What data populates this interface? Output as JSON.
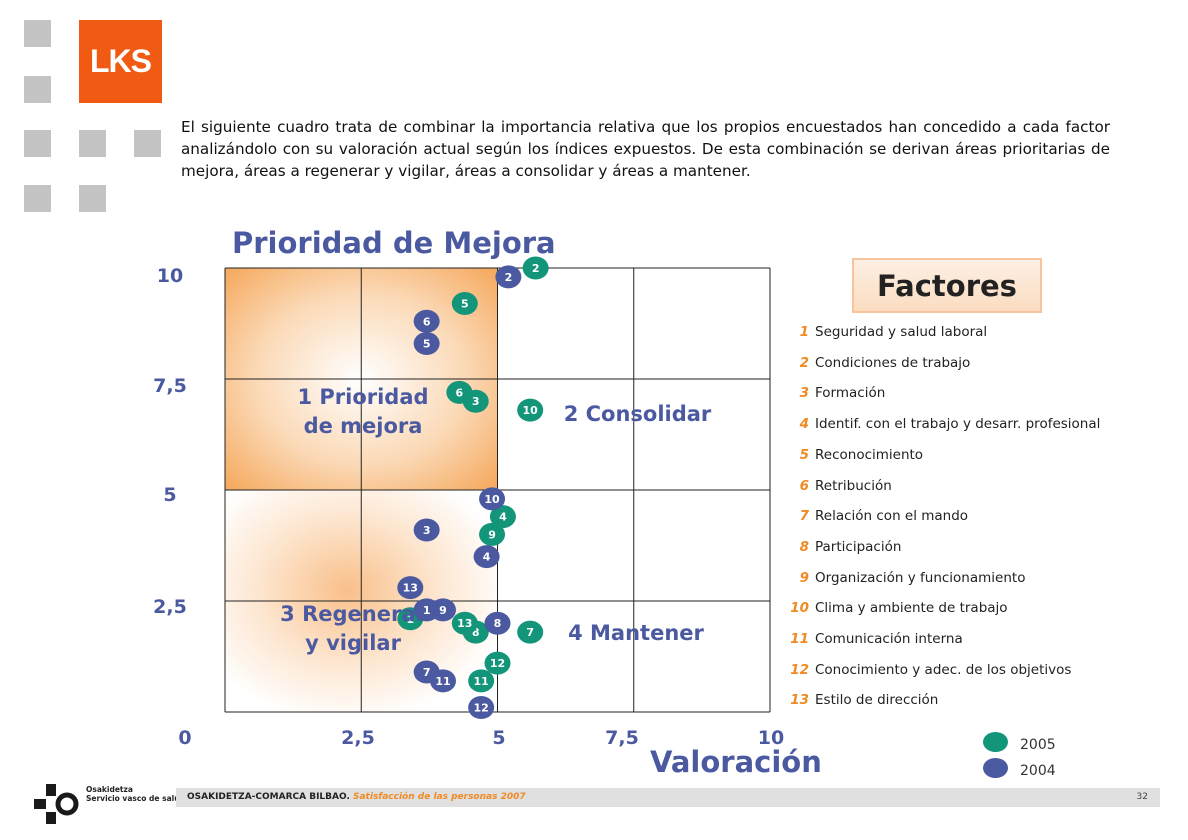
{
  "logo": {
    "text": "LKS",
    "color": "#f05a12"
  },
  "intro_text": "El siguiente cuadro trata de combinar la importancia relativa que los propios encuestados han concedido a cada factor analizándolo con su valoración actual según los índices expuestos. De esta combinación se derivan áreas prioritarias de mejora, áreas a regenerar y vigilar, áreas a consolidar y áreas a mantener.",
  "chart_data": {
    "type": "scatter",
    "title": "Prioridad de Mejora",
    "xlabel": "Valoración",
    "ylabel": "",
    "xlim": [
      0,
      10
    ],
    "ylim": [
      0,
      10
    ],
    "x_ticks": [
      "0",
      "2,5",
      "5",
      "7,5",
      "10"
    ],
    "y_ticks": [
      "10",
      "7,5",
      "5",
      "2,5"
    ],
    "grid": true,
    "quadrants": [
      {
        "label_line1": "1 Prioridad",
        "label_line2": "de mejora"
      },
      {
        "label_line1": "2 Consolidar",
        "label_line2": ""
      },
      {
        "label_line1": "3 Regenerar",
        "label_line2": "y vigilar"
      },
      {
        "label_line1": "4 Mantener",
        "label_line2": ""
      }
    ],
    "series": [
      {
        "name": "2005",
        "color": "#13957a",
        "points": [
          {
            "label": "1",
            "x": 3.4,
            "y": 2.1
          },
          {
            "label": "2",
            "x": 5.7,
            "y": 10.0
          },
          {
            "label": "3",
            "x": 4.6,
            "y": 7.0
          },
          {
            "label": "4",
            "x": 5.1,
            "y": 4.4
          },
          {
            "label": "5",
            "x": 4.4,
            "y": 9.2
          },
          {
            "label": "6",
            "x": 4.3,
            "y": 7.2
          },
          {
            "label": "7",
            "x": 5.6,
            "y": 1.8
          },
          {
            "label": "8",
            "x": 4.6,
            "y": 1.8
          },
          {
            "label": "9",
            "x": 4.9,
            "y": 4.0
          },
          {
            "label": "10",
            "x": 5.6,
            "y": 6.8
          },
          {
            "label": "11",
            "x": 4.7,
            "y": 0.7
          },
          {
            "label": "12",
            "x": 5.0,
            "y": 1.1
          },
          {
            "label": "13",
            "x": 4.4,
            "y": 2.0
          }
        ]
      },
      {
        "name": "2004",
        "color": "#4b5aa0",
        "points": [
          {
            "label": "1",
            "x": 3.7,
            "y": 2.3
          },
          {
            "label": "2",
            "x": 5.2,
            "y": 9.8
          },
          {
            "label": "3",
            "x": 3.7,
            "y": 4.1
          },
          {
            "label": "4",
            "x": 4.8,
            "y": 3.5
          },
          {
            "label": "5",
            "x": 3.7,
            "y": 8.3
          },
          {
            "label": "6",
            "x": 3.7,
            "y": 8.8
          },
          {
            "label": "7",
            "x": 3.7,
            "y": 0.9
          },
          {
            "label": "8",
            "x": 5.0,
            "y": 2.0
          },
          {
            "label": "9",
            "x": 4.0,
            "y": 2.3
          },
          {
            "label": "10",
            "x": 4.9,
            "y": 4.8
          },
          {
            "label": "11",
            "x": 4.0,
            "y": 0.7
          },
          {
            "label": "12",
            "x": 4.7,
            "y": 0.1
          },
          {
            "label": "13",
            "x": 3.4,
            "y": 2.8
          }
        ]
      }
    ]
  },
  "factors": {
    "title": "Factores",
    "items": [
      {
        "num": "1",
        "label": "Seguridad y salud laboral"
      },
      {
        "num": "2",
        "label": "Condiciones de trabajo"
      },
      {
        "num": "3",
        "label": "Formación"
      },
      {
        "num": "4",
        "label": "Identif. con el trabajo y desarr. profesional"
      },
      {
        "num": "5",
        "label": "Reconocimiento"
      },
      {
        "num": "6",
        "label": "Retribución"
      },
      {
        "num": "7",
        "label": "Relación con el mando"
      },
      {
        "num": "8",
        "label": "Participación"
      },
      {
        "num": "9",
        "label": "Organización y funcionamiento"
      },
      {
        "num": "10",
        "label": "Clima y ambiente de trabajo"
      },
      {
        "num": "11",
        "label": "Comunicación interna"
      },
      {
        "num": "12",
        "label": "Conocimiento y adec. de los objetivos"
      },
      {
        "num": "13",
        "label": "Estilo de dirección"
      }
    ]
  },
  "legend": [
    {
      "label": "2005",
      "color": "#13957a"
    },
    {
      "label": "2004",
      "color": "#4b5aa0"
    }
  ],
  "footer": {
    "org": "OSAKIDETZA-COMARCA BILBAO.",
    "subtitle": "Satisfacción de las personas 2007",
    "page": "32",
    "brand_line1": "Osakidetza",
    "brand_line2": "Servicio vasco de salud"
  }
}
